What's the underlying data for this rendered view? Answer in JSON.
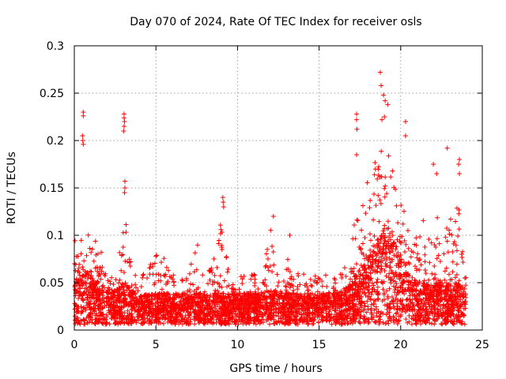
{
  "chart_data": {
    "type": "scatter",
    "title": "Day 070 of 2024, Rate Of TEC Index for receiver osls",
    "xlabel": "GPS time / hours",
    "ylabel": "ROTI / TECUs",
    "xlim": [
      0,
      25
    ],
    "ylim": [
      0,
      0.3
    ],
    "xticks": [
      0,
      5,
      10,
      15,
      20,
      25
    ],
    "xtick_labels": [
      "0",
      "5",
      "10",
      "15",
      "20",
      "25"
    ],
    "yticks": [
      0,
      0.05,
      0.1,
      0.15,
      0.2,
      0.25,
      0.3
    ],
    "ytick_labels": [
      "0",
      "0.05",
      "0.1",
      "0.15",
      "0.2",
      "0.25",
      "0.3"
    ],
    "grid": true,
    "marker": "plus",
    "color": "#ff0000",
    "data_range_hours": [
      0,
      24
    ],
    "profile": {
      "x": [
        0,
        0.5,
        1,
        1.5,
        2,
        2.5,
        3,
        3.5,
        4,
        4.5,
        5,
        5.5,
        6,
        6.5,
        7,
        7.5,
        8,
        8.5,
        9,
        9.5,
        10,
        10.5,
        11,
        11.5,
        12,
        12.5,
        13,
        13.5,
        14,
        14.5,
        15,
        15.5,
        16,
        16.5,
        17,
        17.5,
        18,
        18.5,
        19,
        19.5,
        20,
        20.5,
        21,
        21.5,
        22,
        22.5,
        23,
        23.5,
        24
      ],
      "upper_envelope": [
        0.11,
        0.12,
        0.1,
        0.09,
        0.07,
        0.06,
        0.14,
        0.07,
        0.05,
        0.07,
        0.08,
        0.08,
        0.06,
        0.06,
        0.06,
        0.1,
        0.06,
        0.07,
        0.12,
        0.06,
        0.06,
        0.06,
        0.06,
        0.05,
        0.11,
        0.06,
        0.08,
        0.06,
        0.06,
        0.06,
        0.06,
        0.06,
        0.06,
        0.08,
        0.1,
        0.14,
        0.16,
        0.18,
        0.2,
        0.17,
        0.15,
        0.1,
        0.11,
        0.12,
        0.13,
        0.11,
        0.12,
        0.14,
        0.06
      ],
      "median": [
        0.03,
        0.04,
        0.035,
        0.03,
        0.025,
        0.025,
        0.03,
        0.025,
        0.02,
        0.022,
        0.022,
        0.022,
        0.022,
        0.022,
        0.022,
        0.022,
        0.022,
        0.022,
        0.022,
        0.022,
        0.022,
        0.022,
        0.022,
        0.022,
        0.025,
        0.022,
        0.022,
        0.022,
        0.022,
        0.022,
        0.022,
        0.022,
        0.022,
        0.025,
        0.03,
        0.04,
        0.05,
        0.06,
        0.065,
        0.06,
        0.05,
        0.035,
        0.03,
        0.03,
        0.035,
        0.03,
        0.03,
        0.03,
        0.025
      ]
    },
    "outlier_points": [
      {
        "x": 0.55,
        "y": 0.23
      },
      {
        "x": 0.55,
        "y": 0.226
      },
      {
        "x": 0.5,
        "y": 0.205
      },
      {
        "x": 0.52,
        "y": 0.2
      },
      {
        "x": 0.55,
        "y": 0.196
      },
      {
        "x": 3.05,
        "y": 0.228
      },
      {
        "x": 3.05,
        "y": 0.224
      },
      {
        "x": 3.08,
        "y": 0.22
      },
      {
        "x": 3.05,
        "y": 0.215
      },
      {
        "x": 3.02,
        "y": 0.21
      },
      {
        "x": 3.1,
        "y": 0.157
      },
      {
        "x": 3.1,
        "y": 0.15
      },
      {
        "x": 3.08,
        "y": 0.145
      },
      {
        "x": 9.1,
        "y": 0.14
      },
      {
        "x": 9.12,
        "y": 0.135
      },
      {
        "x": 9.15,
        "y": 0.13
      },
      {
        "x": 12.2,
        "y": 0.12
      },
      {
        "x": 13.2,
        "y": 0.1
      },
      {
        "x": 17.3,
        "y": 0.228
      },
      {
        "x": 17.3,
        "y": 0.222
      },
      {
        "x": 17.32,
        "y": 0.212
      },
      {
        "x": 17.3,
        "y": 0.185
      },
      {
        "x": 18.75,
        "y": 0.272
      },
      {
        "x": 18.8,
        "y": 0.258
      },
      {
        "x": 18.95,
        "y": 0.248
      },
      {
        "x": 19.05,
        "y": 0.242
      },
      {
        "x": 19.2,
        "y": 0.238
      },
      {
        "x": 18.85,
        "y": 0.222
      },
      {
        "x": 19.0,
        "y": 0.225
      },
      {
        "x": 20.3,
        "y": 0.22
      },
      {
        "x": 20.3,
        "y": 0.205
      },
      {
        "x": 22.0,
        "y": 0.175
      },
      {
        "x": 22.2,
        "y": 0.165
      },
      {
        "x": 22.85,
        "y": 0.192
      },
      {
        "x": 23.6,
        "y": 0.18
      },
      {
        "x": 23.55,
        "y": 0.175
      },
      {
        "x": 23.6,
        "y": 0.165
      }
    ]
  }
}
